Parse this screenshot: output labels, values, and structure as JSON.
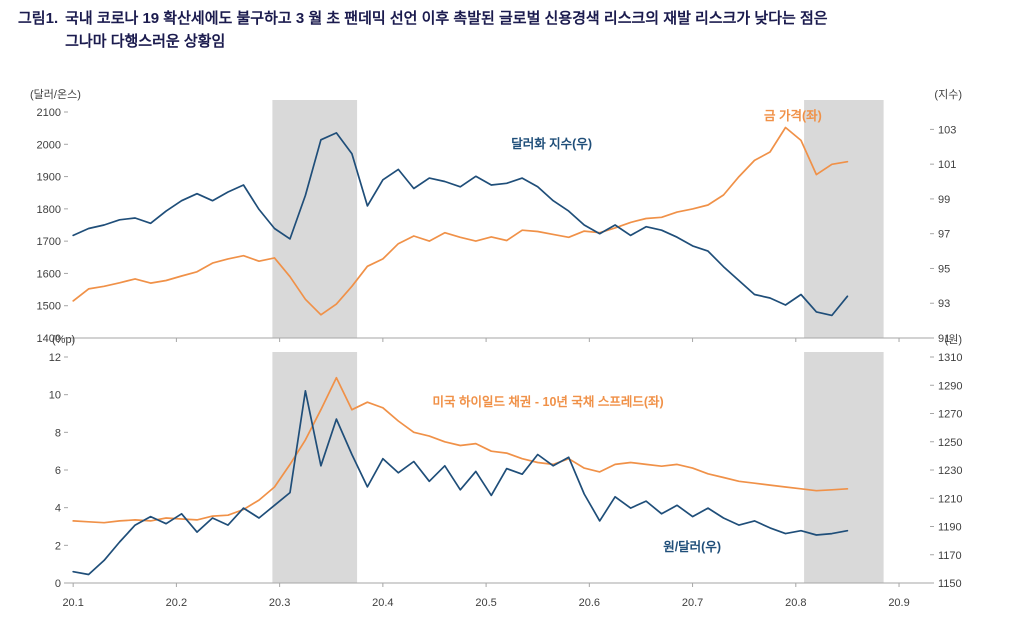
{
  "title": {
    "label": "그림1.",
    "line1": "국내 코로나 19 확산세에도 불구하고 3 월 초 팬데믹 선언 이후 촉발된 글로벌 신용경색 리스크의 재발 리스크가 낮다는 점은",
    "line2": "그나마 다행스러운 상황임"
  },
  "colors": {
    "orange": "#F09148",
    "navy": "#1F4E79",
    "band": "#D9D9D9",
    "axis": "#A6A6A6",
    "tick_text": "#404040",
    "title_text": "#1B1B4E"
  },
  "chart_data": [
    {
      "key": "gold-dollar",
      "type": "line",
      "unit_left": "(달러/온스)",
      "unit_right": "(지수)",
      "y_left": {
        "min": 1400,
        "max": 2100,
        "ticks": [
          2100,
          2000,
          1900,
          1800,
          1700,
          1600,
          1500,
          1400
        ]
      },
      "y_right": {
        "min": 91,
        "max": 104,
        "ticks": [
          103,
          101,
          99,
          97,
          95,
          93,
          91
        ]
      },
      "x_axis": {
        "min": 20.095,
        "max": 20.93,
        "ticks": [
          20.1,
          20.2,
          20.3,
          20.4,
          20.5,
          20.6,
          20.7,
          20.8,
          20.9
        ],
        "show_tick_labels": false
      },
      "bands": [
        [
          20.293,
          20.375
        ],
        [
          20.808,
          20.885
        ]
      ],
      "x": [
        20.1,
        20.115,
        20.13,
        20.145,
        20.16,
        20.175,
        20.19,
        20.205,
        20.22,
        20.235,
        20.25,
        20.265,
        20.28,
        20.295,
        20.31,
        20.325,
        20.34,
        20.355,
        20.37,
        20.385,
        20.4,
        20.415,
        20.43,
        20.445,
        20.46,
        20.475,
        20.49,
        20.505,
        20.52,
        20.535,
        20.55,
        20.565,
        20.58,
        20.595,
        20.61,
        20.625,
        20.64,
        20.655,
        20.67,
        20.685,
        20.7,
        20.715,
        20.73,
        20.745,
        20.76,
        20.775,
        20.79,
        20.805,
        20.82,
        20.835,
        20.85
      ],
      "series": [
        {
          "key": "gold-price",
          "label": "금 가격(좌)",
          "axis": "left",
          "color_key": "orange",
          "values": [
            1515,
            1552,
            1560,
            1571,
            1583,
            1570,
            1578,
            1592,
            1605,
            1632,
            1645,
            1655,
            1638,
            1648,
            1590,
            1520,
            1472,
            1505,
            1560,
            1622,
            1645,
            1692,
            1716,
            1700,
            1726,
            1712,
            1700,
            1713,
            1702,
            1734,
            1730,
            1721,
            1712,
            1731,
            1726,
            1741,
            1758,
            1770,
            1774,
            1790,
            1800,
            1812,
            1843,
            1900,
            1950,
            1976,
            2052,
            2012,
            1906,
            1938,
            1946
          ]
        },
        {
          "key": "dollar-index",
          "label": "달러화 지수(우)",
          "axis": "right",
          "color_key": "navy",
          "values": [
            96.9,
            97.3,
            97.5,
            97.8,
            97.9,
            97.6,
            98.3,
            98.9,
            99.3,
            98.9,
            99.4,
            99.8,
            98.4,
            97.3,
            96.7,
            99.2,
            102.4,
            102.8,
            101.6,
            98.6,
            100.1,
            100.7,
            99.6,
            100.2,
            100.0,
            99.7,
            100.3,
            99.8,
            99.9,
            100.2,
            99.7,
            98.9,
            98.3,
            97.5,
            97.0,
            97.5,
            96.9,
            97.4,
            97.2,
            96.8,
            96.3,
            96.0,
            95.1,
            94.3,
            93.5,
            93.3,
            92.9,
            93.5,
            92.5,
            92.3,
            93.4
          ]
        }
      ],
      "annotations": [
        {
          "series": "gold-price",
          "xf": 0.841,
          "yf": 0.035
        },
        {
          "series": "dollar-index",
          "xf": 0.561,
          "yf": 0.16
        }
      ]
    },
    {
      "key": "spread-krw",
      "type": "line",
      "unit_left": "(%p)",
      "unit_right": "(원)",
      "y_left": {
        "min": 0,
        "max": 12,
        "ticks": [
          12,
          10,
          8,
          6,
          4,
          2,
          0
        ]
      },
      "y_right": {
        "min": 1150,
        "max": 1310,
        "ticks": [
          1310,
          1290,
          1270,
          1250,
          1230,
          1210,
          1190,
          1170,
          1150
        ]
      },
      "x_axis": {
        "min": 20.095,
        "max": 20.93,
        "ticks": [
          20.1,
          20.2,
          20.3,
          20.4,
          20.5,
          20.6,
          20.7,
          20.8,
          20.9
        ],
        "show_tick_labels": true
      },
      "bands": [
        [
          20.293,
          20.375
        ],
        [
          20.808,
          20.885
        ]
      ],
      "x": [
        20.1,
        20.115,
        20.13,
        20.145,
        20.16,
        20.175,
        20.19,
        20.205,
        20.22,
        20.235,
        20.25,
        20.265,
        20.28,
        20.295,
        20.31,
        20.325,
        20.34,
        20.355,
        20.37,
        20.385,
        20.4,
        20.415,
        20.43,
        20.445,
        20.46,
        20.475,
        20.49,
        20.505,
        20.52,
        20.535,
        20.55,
        20.565,
        20.58,
        20.595,
        20.61,
        20.625,
        20.64,
        20.655,
        20.67,
        20.685,
        20.7,
        20.715,
        20.73,
        20.745,
        20.76,
        20.775,
        20.79,
        20.805,
        20.82,
        20.835,
        20.85
      ],
      "series": [
        {
          "key": "hy-spread",
          "label": "미국 하이일드 채권 - 10년 국채 스프레드(좌)",
          "axis": "left",
          "color_key": "orange",
          "values": [
            3.3,
            3.25,
            3.2,
            3.3,
            3.35,
            3.3,
            3.45,
            3.4,
            3.35,
            3.55,
            3.6,
            3.9,
            4.4,
            5.1,
            6.3,
            7.6,
            9.2,
            10.9,
            9.2,
            9.6,
            9.3,
            8.6,
            8.0,
            7.8,
            7.5,
            7.3,
            7.4,
            7.0,
            6.9,
            6.6,
            6.4,
            6.3,
            6.6,
            6.1,
            5.9,
            6.3,
            6.4,
            6.3,
            6.2,
            6.3,
            6.1,
            5.8,
            5.6,
            5.4,
            5.3,
            5.2,
            5.1,
            5.0,
            4.9,
            4.95,
            5.0
          ]
        },
        {
          "key": "usd-krw",
          "label": "원/달러(우)",
          "axis": "right",
          "color_key": "navy",
          "values": [
            1158,
            1156,
            1166,
            1179,
            1191,
            1197,
            1192,
            1199,
            1186,
            1196,
            1191,
            1203,
            1196,
            1205,
            1214,
            1286,
            1233,
            1266,
            1241,
            1218,
            1238,
            1228,
            1236,
            1222,
            1233,
            1216,
            1229,
            1212,
            1231,
            1227,
            1241,
            1233,
            1239,
            1213,
            1194,
            1211,
            1203,
            1208,
            1199,
            1205,
            1197,
            1203,
            1196,
            1191,
            1194,
            1189,
            1185,
            1187,
            1184,
            1185,
            1187
          ]
        }
      ],
      "annotations": [
        {
          "series": "hy-spread",
          "xf": 0.557,
          "yf": 0.217
        },
        {
          "series": "usd-krw",
          "xf": 0.724,
          "yf": 0.858
        }
      ]
    }
  ]
}
